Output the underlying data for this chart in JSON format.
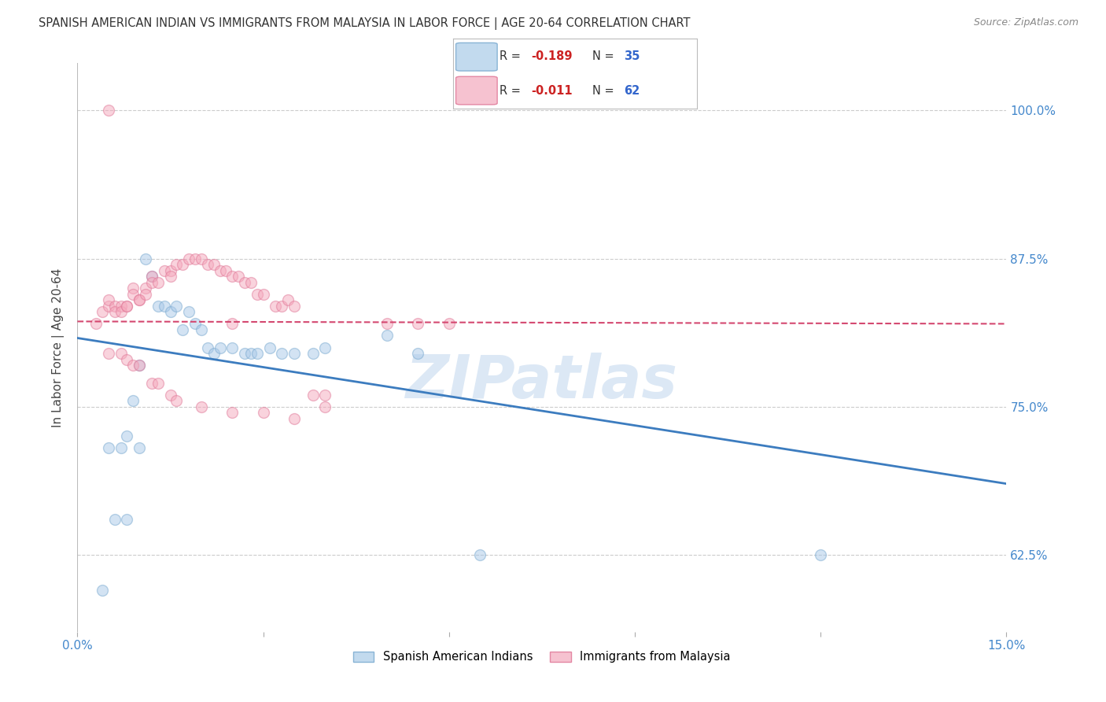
{
  "title": "SPANISH AMERICAN INDIAN VS IMMIGRANTS FROM MALAYSIA IN LABOR FORCE | AGE 20-64 CORRELATION CHART",
  "source": "Source: ZipAtlas.com",
  "ylabel": "In Labor Force | Age 20-64",
  "xlim": [
    0.0,
    0.15
  ],
  "ylim": [
    0.56,
    1.04
  ],
  "yticks": [
    0.625,
    0.75,
    0.875,
    1.0
  ],
  "ytick_labels": [
    "62.5%",
    "75.0%",
    "87.5%",
    "100.0%"
  ],
  "xticks": [
    0.0,
    0.03,
    0.06,
    0.09,
    0.12,
    0.15
  ],
  "xtick_labels": [
    "0.0%",
    "",
    "",
    "",
    "",
    "15.0%"
  ],
  "watermark": "ZIPatlas",
  "blue_scatter_x": [
    0.004,
    0.005,
    0.007,
    0.008,
    0.009,
    0.01,
    0.011,
    0.012,
    0.013,
    0.014,
    0.015,
    0.016,
    0.017,
    0.018,
    0.019,
    0.02,
    0.021,
    0.022,
    0.023,
    0.025,
    0.027,
    0.028,
    0.029,
    0.031,
    0.033,
    0.035,
    0.038,
    0.04,
    0.05,
    0.055,
    0.065,
    0.12,
    0.006,
    0.008,
    0.01
  ],
  "blue_scatter_y": [
    0.595,
    0.715,
    0.715,
    0.725,
    0.755,
    0.715,
    0.875,
    0.86,
    0.835,
    0.835,
    0.83,
    0.835,
    0.815,
    0.83,
    0.82,
    0.815,
    0.8,
    0.795,
    0.8,
    0.8,
    0.795,
    0.795,
    0.795,
    0.8,
    0.795,
    0.795,
    0.795,
    0.8,
    0.81,
    0.795,
    0.625,
    0.625,
    0.655,
    0.655,
    0.785
  ],
  "pink_scatter_x": [
    0.003,
    0.004,
    0.005,
    0.005,
    0.005,
    0.006,
    0.006,
    0.007,
    0.007,
    0.008,
    0.008,
    0.009,
    0.009,
    0.01,
    0.01,
    0.011,
    0.011,
    0.012,
    0.012,
    0.013,
    0.014,
    0.015,
    0.015,
    0.016,
    0.017,
    0.018,
    0.019,
    0.02,
    0.021,
    0.022,
    0.023,
    0.024,
    0.025,
    0.026,
    0.027,
    0.028,
    0.029,
    0.03,
    0.032,
    0.033,
    0.034,
    0.035,
    0.038,
    0.04,
    0.05,
    0.055,
    0.06,
    0.04,
    0.025,
    0.005,
    0.007,
    0.008,
    0.009,
    0.01,
    0.012,
    0.013,
    0.015,
    0.016,
    0.02,
    0.025,
    0.03,
    0.035
  ],
  "pink_scatter_y": [
    0.82,
    0.83,
    0.835,
    0.84,
    1.0,
    0.835,
    0.83,
    0.835,
    0.83,
    0.835,
    0.835,
    0.85,
    0.845,
    0.84,
    0.84,
    0.85,
    0.845,
    0.86,
    0.855,
    0.855,
    0.865,
    0.865,
    0.86,
    0.87,
    0.87,
    0.875,
    0.875,
    0.875,
    0.87,
    0.87,
    0.865,
    0.865,
    0.86,
    0.86,
    0.855,
    0.855,
    0.845,
    0.845,
    0.835,
    0.835,
    0.84,
    0.835,
    0.76,
    0.76,
    0.82,
    0.82,
    0.82,
    0.75,
    0.82,
    0.795,
    0.795,
    0.79,
    0.785,
    0.785,
    0.77,
    0.77,
    0.76,
    0.755,
    0.75,
    0.745,
    0.745,
    0.74
  ],
  "blue_line_x": [
    0.0,
    0.15
  ],
  "blue_line_y": [
    0.808,
    0.685
  ],
  "pink_line_x": [
    0.0,
    0.15
  ],
  "pink_line_y": [
    0.822,
    0.82
  ],
  "blue_line_color": "#3c7cbf",
  "pink_line_color": "#d44870",
  "scatter_alpha": 0.5,
  "scatter_size": 100,
  "blue_scatter_color": "#a8c8e8",
  "blue_scatter_edge": "#7aaad0",
  "pink_scatter_color": "#f5a8bc",
  "pink_scatter_edge": "#e07898",
  "grid_color": "#cccccc",
  "background_color": "#ffffff",
  "title_color": "#333333",
  "axis_color": "#4488cc",
  "watermark_color": "#dce8f5",
  "watermark_fontsize": 55,
  "legend_R_color": "#cc2222",
  "legend_N_color": "#3366cc",
  "legend_text_color": "#333333",
  "legend_blue_face": "#b8d4ec",
  "legend_pink_face": "#f5b8c8"
}
